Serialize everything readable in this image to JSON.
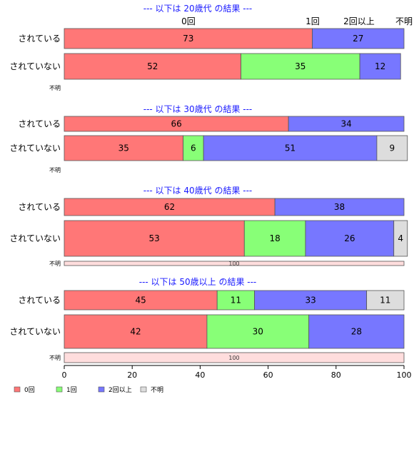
{
  "chart_data": {
    "type": "bar",
    "orientation": "horizontal",
    "stacked": true,
    "percent": true,
    "xlim": [
      0,
      100
    ],
    "xticks": [
      0,
      20,
      40,
      60,
      80,
      100
    ],
    "legend_position": "bottom-left",
    "categories": [
      "0回",
      "1回",
      "2回以上",
      "不明"
    ],
    "colors": {
      "0回": "#ff7777",
      "1回": "#88ff77",
      "2回以上": "#7777ff",
      "不明": "#dddddd",
      "不明_row": "#ffdddd"
    },
    "header_labels": [
      "0回",
      "1回",
      "2回以上",
      "不明"
    ],
    "groups": [
      {
        "title": "--- 以下は 20歳代 の結果 ---",
        "rows": [
          {
            "label": "されている",
            "values": {
              "0回": 73,
              "2回以上": 27
            }
          },
          {
            "label": "されていない",
            "values": {
              "0回": 52,
              "1回": 35,
              "2回以上": 12
            }
          },
          {
            "label": "不明",
            "values": {}
          }
        ]
      },
      {
        "title": "--- 以下は 30歳代 の結果 ---",
        "rows": [
          {
            "label": "されている",
            "values": {
              "0回": 66,
              "2回以上": 34
            }
          },
          {
            "label": "されていない",
            "values": {
              "0回": 35,
              "1回": 6,
              "2回以上": 51,
              "不明": 9
            }
          },
          {
            "label": "不明",
            "values": {}
          }
        ]
      },
      {
        "title": "--- 以下は 40歳代 の結果 ---",
        "rows": [
          {
            "label": "されている",
            "values": {
              "0回": 62,
              "2回以上": 38
            }
          },
          {
            "label": "されていない",
            "values": {
              "0回": 53,
              "1回": 18,
              "2回以上": 26,
              "不明": 4
            }
          },
          {
            "label": "不明",
            "values": {
              "不明": 100
            }
          }
        ]
      },
      {
        "title": "--- 以下は 50歳以上 の結果 ---",
        "rows": [
          {
            "label": "されている",
            "values": {
              "0回": 45,
              "1回": 11,
              "2回以上": 33,
              "不明": 11
            }
          },
          {
            "label": "されていない",
            "values": {
              "0回": 42,
              "1回": 30,
              "2回以上": 28
            }
          },
          {
            "label": "不明",
            "values": {
              "不明": 100
            }
          }
        ]
      }
    ]
  }
}
